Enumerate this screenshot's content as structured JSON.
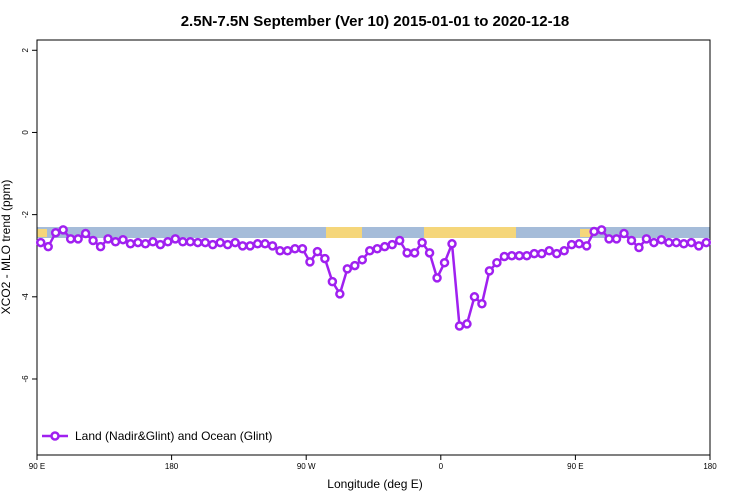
{
  "chart_data": {
    "type": "line",
    "title": "2.5N-7.5N September (Ver 10)   2015-01-01 to 2020-12-18",
    "x_label": "Longitude (deg E)",
    "y_label": "XCO2 - MLO trend (ppm)",
    "x": [
      92.5,
      97.5,
      102.5,
      107.5,
      112.5,
      117.5,
      122.5,
      127.5,
      132.5,
      137.5,
      142.5,
      147.5,
      152.5,
      157.5,
      162.5,
      167.5,
      172.5,
      177.5,
      182.5,
      187.5,
      192.5,
      197.5,
      202.5,
      207.5,
      212.5,
      217.5,
      222.5,
      227.5,
      232.5,
      237.5,
      242.5,
      247.5,
      252.5,
      257.5,
      262.5,
      267.5,
      272.5,
      277.5,
      282.5,
      287.5,
      292.5,
      297.5,
      302.5,
      307.5,
      312.5,
      317.5,
      322.5,
      327.5,
      332.5,
      337.5,
      342.5,
      347.5,
      352.5,
      357.5,
      362.5,
      367.5,
      372.5,
      377.5,
      382.5,
      387.5,
      392.5,
      397.5,
      402.5,
      407.5,
      412.5,
      417.5,
      422.5,
      427.5,
      432.5,
      437.5,
      442.5,
      447.5,
      452.5,
      457.5,
      462.5,
      467.5,
      472.5,
      477.5,
      482.5,
      487.5,
      492.5,
      497.5,
      502.5,
      507.5,
      512.5,
      517.5,
      522.5,
      527.5,
      532.5,
      537.5
    ],
    "series": [
      {
        "name": "Land (Nadir&Glint) and Ocean (Glint)",
        "color": "#a020f0",
        "values": [
          -2.68,
          -2.78,
          -2.44,
          -2.37,
          -2.59,
          -2.59,
          -2.46,
          -2.63,
          -2.78,
          -2.59,
          -2.66,
          -2.61,
          -2.71,
          -2.68,
          -2.71,
          -2.66,
          -2.73,
          -2.66,
          -2.59,
          -2.66,
          -2.66,
          -2.68,
          -2.68,
          -2.73,
          -2.68,
          -2.73,
          -2.68,
          -2.76,
          -2.76,
          -2.71,
          -2.71,
          -2.76,
          -2.88,
          -2.88,
          -2.83,
          -2.83,
          -3.15,
          -2.9,
          -3.07,
          -3.63,
          -3.93,
          -3.32,
          -3.24,
          -3.1,
          -2.88,
          -2.83,
          -2.78,
          -2.73,
          -2.63,
          -2.93,
          -2.93,
          -2.68,
          -2.93,
          -3.54,
          -3.17,
          -2.71,
          -4.71,
          -4.66,
          -4.0,
          -4.17,
          -3.37,
          -3.17,
          -3.02,
          -3.0,
          -3.0,
          -3.0,
          -2.95,
          -2.95,
          -2.88,
          -2.95,
          -2.88,
          -2.73,
          -2.71,
          -2.76,
          -2.41,
          -2.37,
          -2.59,
          -2.59,
          -2.46,
          -2.63,
          -2.8,
          -2.59,
          -2.68,
          -2.61,
          -2.68,
          -2.68,
          -2.71,
          -2.68,
          -2.76,
          -2.68
        ]
      }
    ],
    "xlim": [
      90,
      540
    ],
    "xticks": [
      {
        "value": 90,
        "label": "90 E"
      },
      180,
      {
        "value": 270,
        "label": "90 W"
      },
      {
        "value": 360,
        "label": "0"
      },
      {
        "value": 450,
        "label": "90 E"
      },
      {
        "value": 540,
        "label": "180"
      }
    ],
    "ylim": [
      -7.85,
      2.25
    ],
    "yticks": [
      -6,
      -4,
      -2,
      0,
      2
    ],
    "legend": "bottom-left"
  }
}
